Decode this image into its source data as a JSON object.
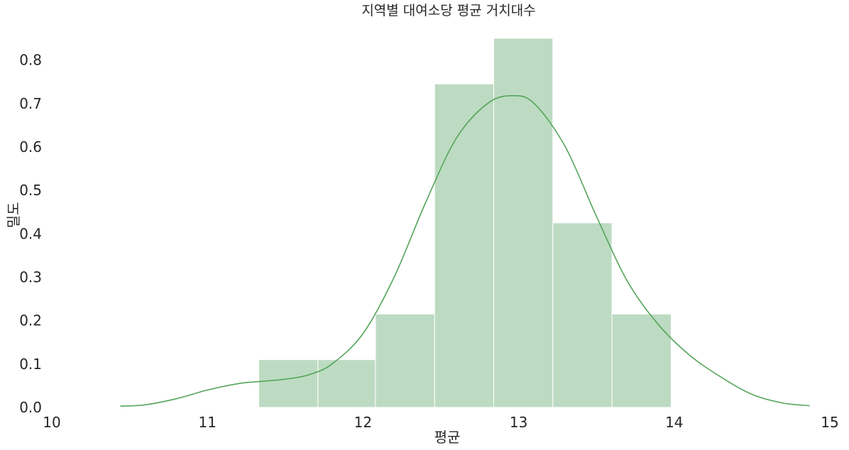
{
  "chart_data": {
    "type": "histogram",
    "title": "지역별 대여소당 평균 거치대수",
    "xlabel": "평균",
    "ylabel": "밀도",
    "xlim": [
      10,
      15
    ],
    "ylim": [
      0,
      0.85
    ],
    "x_ticks": [
      "10",
      "11",
      "12",
      "13",
      "14",
      "15"
    ],
    "y_ticks": [
      "0.0",
      "0.1",
      "0.2",
      "0.3",
      "0.4",
      "0.5",
      "0.6",
      "0.7",
      "0.8"
    ],
    "grid": false,
    "bins": [
      {
        "x0": 11.33,
        "x1": 11.71,
        "density": 0.11
      },
      {
        "x0": 11.71,
        "x1": 12.08,
        "density": 0.11
      },
      {
        "x0": 12.08,
        "x1": 12.46,
        "density": 0.215
      },
      {
        "x0": 12.46,
        "x1": 12.84,
        "density": 0.745
      },
      {
        "x0": 12.84,
        "x1": 13.22,
        "density": 0.85
      },
      {
        "x0": 13.22,
        "x1": 13.6,
        "density": 0.425
      },
      {
        "x0": 13.6,
        "x1": 13.98,
        "density": 0.215
      }
    ],
    "kde": {
      "x": [
        10.44,
        10.6,
        10.8,
        11.0,
        11.2,
        11.35,
        11.5,
        11.65,
        11.8,
        12.0,
        12.2,
        12.4,
        12.6,
        12.8,
        12.96,
        13.1,
        13.3,
        13.5,
        13.7,
        13.9,
        14.1,
        14.3,
        14.5,
        14.7,
        14.87
      ],
      "y": [
        0.003,
        0.006,
        0.02,
        0.04,
        0.055,
        0.06,
        0.065,
        0.075,
        0.1,
        0.17,
        0.3,
        0.47,
        0.62,
        0.7,
        0.718,
        0.7,
        0.6,
        0.44,
        0.29,
        0.19,
        0.12,
        0.07,
        0.03,
        0.01,
        0.004
      ]
    },
    "colors": {
      "bar": "#bddbc2",
      "bar_edge": "#ffffff",
      "kde": "#55a55a",
      "text": "#262626"
    }
  }
}
